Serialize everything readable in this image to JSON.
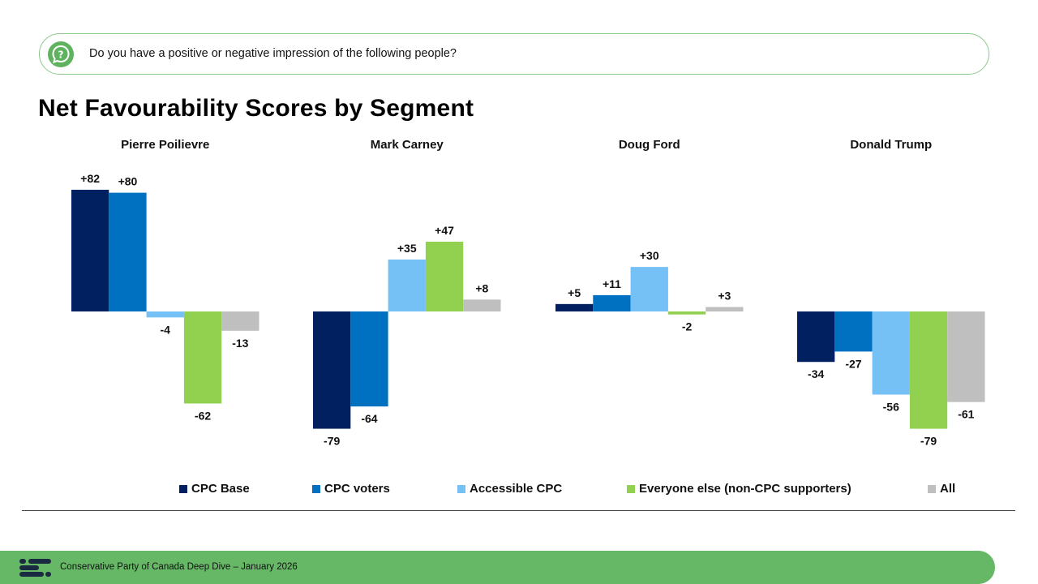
{
  "question": {
    "icon": "question-bubble-icon",
    "text": "Do you have a positive or negative impression of the following people?"
  },
  "title": "Net Favourability Scores by Segment",
  "colors": {
    "cpc_base": "#002060",
    "cpc_voters": "#0070c0",
    "accessible_cpc": "#75c1f5",
    "everyone_else": "#92d050",
    "all": "#bfbfbf",
    "accent": "#66b766"
  },
  "chart_data": {
    "type": "bar",
    "title": "Net Favourability Scores by Segment",
    "categories": [
      "Pierre Poilievre",
      "Mark Carney",
      "Doug Ford",
      "Donald Trump"
    ],
    "series": [
      {
        "name": "CPC Base",
        "values": [
          82,
          -79,
          5,
          -34
        ],
        "color": "#002060"
      },
      {
        "name": "CPC voters",
        "values": [
          80,
          -64,
          11,
          -27
        ],
        "color": "#0070c0"
      },
      {
        "name": "Accessible CPC",
        "values": [
          -4,
          35,
          30,
          -56
        ],
        "color": "#75c1f5"
      },
      {
        "name": "Everyone else (non-CPC supporters)",
        "values": [
          -62,
          47,
          -2,
          -79
        ],
        "color": "#92d050"
      },
      {
        "name": "All",
        "values": [
          -13,
          8,
          3,
          -61
        ],
        "color": "#bfbfbf"
      }
    ],
    "ylim": [
      -90,
      90
    ],
    "grid": false,
    "legend": "bottom"
  },
  "legend_items": [
    "CPC Base",
    "CPC voters",
    "Accessible CPC",
    "Everyone else (non-CPC supporters)",
    "All"
  ],
  "footer": {
    "logo": "cpc-logo-icon",
    "text": "Conservative Party of Canada Deep Dive – January 2026"
  }
}
